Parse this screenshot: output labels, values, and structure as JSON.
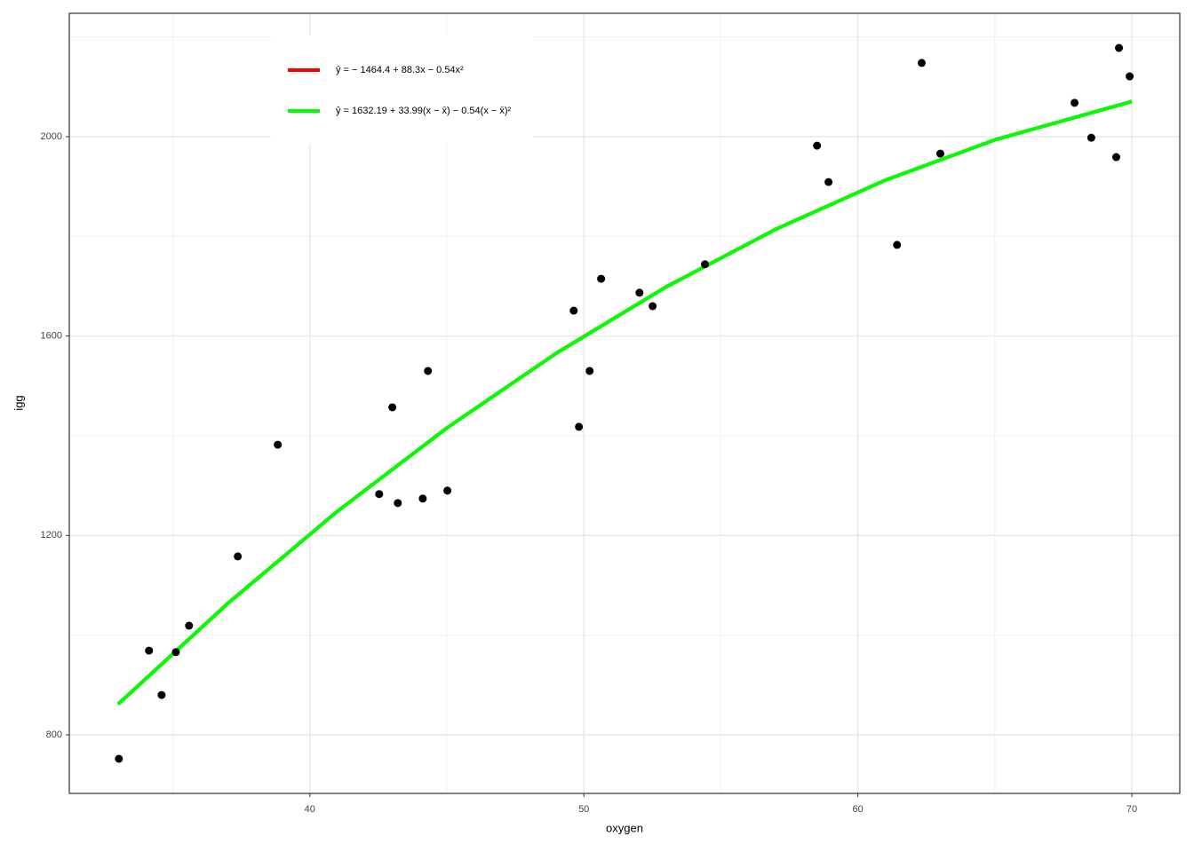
{
  "chart_data": {
    "type": "scatter",
    "x_label": "oxygen",
    "y_label": "igg",
    "xlim": [
      31.22,
      71.75
    ],
    "ylim": [
      682.5,
      2247.5
    ],
    "xticks": [
      40,
      50,
      60,
      70
    ],
    "yticks": [
      800,
      1200,
      1600,
      2000
    ],
    "xminor": [
      35,
      45,
      55,
      65
    ],
    "yminor": [
      1000,
      1400,
      1800,
      2200
    ],
    "grid": true,
    "legend": "top-left",
    "points": {
      "color": "#000000",
      "x": [
        33.03,
        34.13,
        34.59,
        35.11,
        35.59,
        37.37,
        38.83,
        42.53,
        43.01,
        43.21,
        44.12,
        44.31,
        45.02,
        49.63,
        49.82,
        50.21,
        50.63,
        52.03,
        52.51,
        54.42,
        58.51,
        58.93,
        61.43,
        62.33,
        63.01,
        67.91,
        68.52,
        69.43,
        69.53,
        69.92
      ],
      "values": [
        752,
        969,
        880,
        966,
        1019,
        1158,
        1382,
        1283,
        1457,
        1265,
        1274,
        1530,
        1290,
        1651,
        1418,
        1530,
        1715,
        1687,
        1660,
        1744,
        1982,
        1909,
        1783,
        2148,
        1966,
        2068,
        1998,
        1959,
        2178,
        2121
      ]
    },
    "series": [
      {
        "name": "ŷ = − 1464.4 + 88.3x − 0.54x²",
        "color": "#ff0000",
        "x": [
          33,
          37,
          41,
          45,
          49,
          53,
          57,
          61,
          65,
          70
        ],
        "values": [
          861.4,
          1063.4,
          1248.2,
          1415.6,
          1565.8,
          1698.6,
          1814.2,
          1912.6,
          1993.6,
          2070.6
        ]
      },
      {
        "name": "ŷ = 1632.19 + 33.99(x − x̄) − 0.54(x − x̄)²",
        "color": "#00ff00",
        "x": [
          33,
          37,
          41,
          45,
          49,
          53,
          57,
          61,
          65,
          70
        ],
        "values": [
          861.4,
          1063.4,
          1248.2,
          1415.6,
          1565.8,
          1698.6,
          1814.2,
          1912.6,
          1993.6,
          2070.6
        ]
      }
    ]
  }
}
